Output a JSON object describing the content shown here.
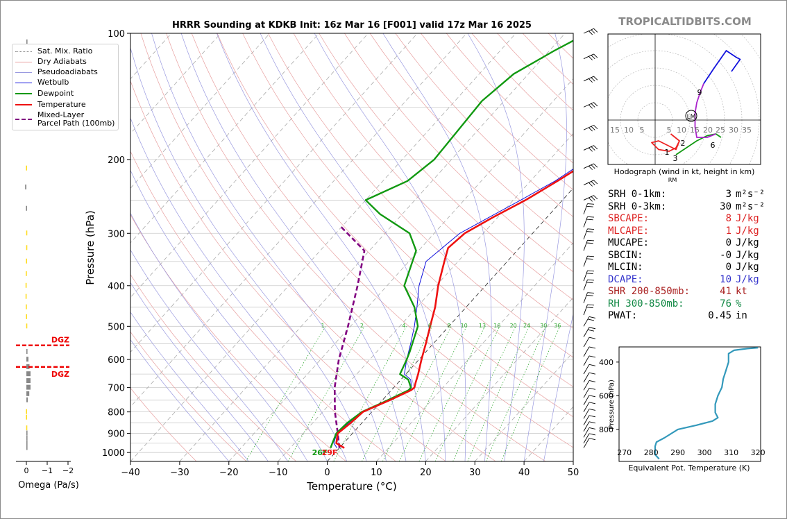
{
  "site_credit": "TROPICALTIDBITS.COM",
  "colors": {
    "temperature": "#ee1111",
    "dewpoint": "#119911",
    "wetbulb": "#1111dd",
    "parcel": "#800080",
    "dry_adiabat": "#e8a0a0",
    "moist_adiabat": "#9a9ae0",
    "mixing_ratio": "#33aa33",
    "isotherm": "#999999",
    "theta_e": "#3399bb",
    "omega": "#888888",
    "dgz": "#ee0000",
    "dcape": "#3333cc",
    "shr": "#aa2222",
    "rh": "#118844"
  },
  "chart_data": [
    {
      "type": "line",
      "title": "HRRR Sounding at KDKB Init: 16z Mar 16 [F001] valid 17z Mar 16 2025",
      "xlabel": "Temperature (°C)",
      "ylabel": "Pressure (hPa)",
      "xlim": [
        -40,
        50
      ],
      "ylim": [
        1050,
        100
      ],
      "yscale": "log",
      "x_ticks": [
        "−40",
        "−30",
        "−20",
        "−10",
        "0",
        "10",
        "20",
        "30",
        "40",
        "50"
      ],
      "y_ticks": [
        "100",
        "200",
        "300",
        "400",
        "500",
        "600",
        "700",
        "800",
        "900",
        "1000"
      ],
      "legend": [
        "Sat. Mix. Ratio",
        "Dry Adiabats",
        "Pseudoadiabats",
        "Wetbulb",
        "Dewpoint",
        "Temperature",
        "Mixed-Layer Parcel Path (100mb)"
      ],
      "legend_position": "upper-left",
      "mixing_ratio_labels": [
        "1",
        "2",
        "4",
        "6",
        "8",
        "10",
        "13",
        "16",
        "20",
        "24",
        "30",
        "36"
      ],
      "surface_labels": {
        "dewpoint": "26F",
        "temperature": "29F"
      },
      "series": [
        {
          "name": "Temperature",
          "points": [
            [
              1.0,
              975
            ],
            [
              -1.5,
              950
            ],
            [
              -3.0,
              900
            ],
            [
              -2.3,
              850
            ],
            [
              -1.8,
              800
            ],
            [
              1.5,
              750
            ],
            [
              4.0,
              710
            ],
            [
              4.2,
              700
            ],
            [
              3.5,
              680
            ],
            [
              2.5,
              650
            ],
            [
              0.5,
              600
            ],
            [
              -1.5,
              550
            ],
            [
              -3.8,
              500
            ],
            [
              -6.3,
              450
            ],
            [
              -9.6,
              400
            ],
            [
              -12.8,
              350
            ],
            [
              -14.5,
              325
            ],
            [
              -13.8,
              300
            ],
            [
              -11.0,
              275
            ],
            [
              -7.5,
              250
            ],
            [
              -4.5,
              225
            ],
            [
              -1.5,
              200
            ],
            [
              2.0,
              165
            ],
            [
              5.0,
              135
            ],
            [
              6.2,
              120
            ],
            [
              8.0,
              100
            ]
          ]
        },
        {
          "name": "Dewpoint",
          "points": [
            [
              -1.8,
              975
            ],
            [
              -2.3,
              950
            ],
            [
              -3.3,
              900
            ],
            [
              -3.0,
              850
            ],
            [
              -2.0,
              800
            ],
            [
              0.5,
              760
            ],
            [
              3.5,
              710
            ],
            [
              3.5,
              700
            ],
            [
              1.5,
              670
            ],
            [
              -1.2,
              650
            ],
            [
              -2.5,
              600
            ],
            [
              -3.3,
              575
            ],
            [
              -6.3,
              500
            ],
            [
              -10.5,
              450
            ],
            [
              -16.5,
              400
            ],
            [
              -20.5,
              330
            ],
            [
              -25.0,
              300
            ],
            [
              -34.5,
              270
            ],
            [
              -40.0,
              250
            ],
            [
              -35.0,
              225
            ],
            [
              -33.5,
              200
            ],
            [
              -34.0,
              170
            ],
            [
              -34.5,
              145
            ],
            [
              -33.0,
              125
            ],
            [
              -29.0,
              110
            ],
            [
              -25.5,
              100
            ]
          ]
        },
        {
          "name": "Wetbulb",
          "points": [
            [
              -0.5,
              975
            ],
            [
              -2.0,
              950
            ],
            [
              -3.2,
              900
            ],
            [
              -2.7,
              850
            ],
            [
              -1.9,
              800
            ],
            [
              1.0,
              750
            ],
            [
              3.8,
              710
            ],
            [
              3.6,
              700
            ],
            [
              2.0,
              670
            ],
            [
              -0.3,
              650
            ],
            [
              -2.5,
              600
            ],
            [
              -4.6,
              550
            ],
            [
              -7.0,
              500
            ],
            [
              -10.0,
              450
            ],
            [
              -13.5,
              400
            ],
            [
              -16.5,
              350
            ],
            [
              -14.8,
              300
            ],
            [
              -11.8,
              275
            ],
            [
              -8.5,
              250
            ],
            [
              -5.0,
              225
            ],
            [
              -2.3,
              200
            ],
            [
              0.5,
              170
            ],
            [
              4.0,
              135
            ],
            [
              5.5,
              120
            ],
            [
              7.5,
              100
            ]
          ]
        },
        {
          "name": "Mixed-Layer Parcel Path (100mb)",
          "points": [
            [
              0.0,
              975
            ],
            [
              -3.0,
              900
            ],
            [
              -7.5,
              800
            ],
            [
              -12.0,
              700
            ],
            [
              -16.3,
              600
            ],
            [
              -20.5,
              500
            ],
            [
              -26.0,
              400
            ],
            [
              -31.0,
              330
            ],
            [
              -40.0,
              290
            ]
          ]
        }
      ]
    },
    {
      "type": "line",
      "title": "Hodograph (wind in kt, height in km)",
      "storm_motion_labels": [
        "LM",
        "RM"
      ],
      "ring_labels": [
        "15",
        "10",
        "5",
        "5",
        "10",
        "15",
        "20",
        "25",
        "30",
        "35"
      ],
      "height_labels": [
        "1",
        "2",
        "3",
        "6",
        "9"
      ],
      "series": [
        {
          "name": "0-3 km",
          "color": "#ee2222",
          "points": [
            [
              4.5,
              -4.0
            ],
            [
              7.0,
              -6.0
            ],
            [
              6.0,
              -8.5
            ],
            [
              1.0,
              -6.0
            ],
            [
              -1.0,
              -6.5
            ],
            [
              1.0,
              -8.5
            ],
            [
              4.0,
              -9.0
            ],
            [
              6.0,
              -8.0
            ],
            [
              7.0,
              -6.0
            ]
          ]
        },
        {
          "name": "3-6 km",
          "color": "#119911",
          "points": [
            [
              6.0,
              -10.0
            ],
            [
              9.0,
              -8.0
            ],
            [
              12.0,
              -6.0
            ],
            [
              15.0,
              -4.5
            ],
            [
              17.5,
              -4.0
            ],
            [
              19.0,
              -5.0
            ]
          ]
        },
        {
          "name": "6-9 km",
          "color": "#aa22cc",
          "points": [
            [
              17.5,
              -4.0
            ],
            [
              15.0,
              -5.0
            ],
            [
              12.0,
              -5.0
            ],
            [
              11.5,
              -2.0
            ],
            [
              11.5,
              2.0
            ],
            [
              12.0,
              5.0
            ],
            [
              13.0,
              8.0
            ],
            [
              14.0,
              10.5
            ]
          ]
        },
        {
          "name": "9+ km",
          "color": "#1111dd",
          "points": [
            [
              14.0,
              10.5
            ],
            [
              17.0,
              15.0
            ],
            [
              20.5,
              20.0
            ],
            [
              23.5,
              18.0
            ],
            [
              24.5,
              17.5
            ],
            [
              22.0,
              14.0
            ]
          ]
        }
      ]
    },
    {
      "type": "line",
      "xlabel": "Equivalent Pot. Temperature (K)",
      "ylabel": "Pressure (hPa)",
      "xlim": [
        268,
        321
      ],
      "ylim": [
        990,
        310
      ],
      "x_ticks": [
        "270",
        "280",
        "290",
        "300",
        "310",
        "320"
      ],
      "y_ticks": [
        "400",
        "600",
        "800"
      ],
      "series": [
        {
          "name": "theta-e",
          "points": [
            [
              283,
              975
            ],
            [
              281.5,
              950
            ],
            [
              281.5,
              900
            ],
            [
              282,
              875
            ],
            [
              285,
              850
            ],
            [
              290,
              800
            ],
            [
              297,
              775
            ],
            [
              303,
              750
            ],
            [
              305,
              730
            ],
            [
              304,
              700
            ],
            [
              304,
              650
            ],
            [
              305,
              600
            ],
            [
              306.5,
              550
            ],
            [
              307,
              500
            ],
            [
              308,
              450
            ],
            [
              309,
              400
            ],
            [
              309,
              350
            ],
            [
              311,
              330
            ],
            [
              316,
              320
            ],
            [
              320,
              315
            ]
          ]
        }
      ]
    },
    {
      "type": "bar",
      "xlabel": "Omega (Pa/s)",
      "x_ticks": [
        "0",
        "−1",
        "−2"
      ],
      "xlim": [
        0.3,
        -2.2
      ],
      "dgz_labels": [
        "DGZ",
        "DGZ"
      ],
      "dgz_pressures": [
        555,
        625
      ],
      "bars": [
        {
          "p": 105,
          "v": -0.05,
          "c": "grey"
        },
        {
          "p": 135,
          "v": 0.02,
          "c": "yellow"
        },
        {
          "p": 165,
          "v": 0.01,
          "c": "yellow"
        },
        {
          "p": 210,
          "v": 0.02,
          "c": "yellow"
        },
        {
          "p": 233,
          "v": 0.06,
          "c": "grey"
        },
        {
          "p": 262,
          "v": 0.02,
          "c": "grey"
        },
        {
          "p": 300,
          "v": 0.01,
          "c": "yellow"
        },
        {
          "p": 325,
          "v": 0.01,
          "c": "yellow"
        },
        {
          "p": 350,
          "v": 0.02,
          "c": "yellow"
        },
        {
          "p": 375,
          "v": 0.03,
          "c": "yellow"
        },
        {
          "p": 400,
          "v": 0.04,
          "c": "yellow"
        },
        {
          "p": 425,
          "v": 0.04,
          "c": "yellow"
        },
        {
          "p": 450,
          "v": 0.03,
          "c": "yellow"
        },
        {
          "p": 475,
          "v": 0.02,
          "c": "yellow"
        },
        {
          "p": 500,
          "v": 0.01,
          "c": "yellow"
        },
        {
          "p": 575,
          "v": -0.05,
          "c": "grey"
        },
        {
          "p": 600,
          "v": -0.1,
          "c": "grey"
        },
        {
          "p": 625,
          "v": -0.15,
          "c": "grey"
        },
        {
          "p": 650,
          "v": -0.2,
          "c": "grey"
        },
        {
          "p": 675,
          "v": -0.2,
          "c": "grey"
        },
        {
          "p": 700,
          "v": -0.2,
          "c": "grey"
        },
        {
          "p": 725,
          "v": -0.14,
          "c": "grey"
        },
        {
          "p": 750,
          "v": -0.07,
          "c": "grey"
        },
        {
          "p": 800,
          "v": 0.02,
          "c": "yellow"
        },
        {
          "p": 825,
          "v": 0.02,
          "c": "yellow"
        },
        {
          "p": 875,
          "v": 0.01,
          "c": "yellow"
        },
        {
          "p": 900,
          "v": -0.01,
          "c": "grey"
        },
        {
          "p": 925,
          "v": -0.02,
          "c": "grey"
        },
        {
          "p": 950,
          "v": -0.02,
          "c": "grey"
        },
        {
          "p": 975,
          "v": -0.02,
          "c": "grey"
        }
      ]
    }
  ],
  "parameters": [
    {
      "label": "SRH 0-1km:",
      "value": "3",
      "unit": "m²s⁻²",
      "color": "#000000"
    },
    {
      "label": "SRH 0-3km:",
      "value": "30",
      "unit": "m²s⁻²",
      "color": "#000000"
    },
    {
      "label": "SBCAPE:",
      "value": "8",
      "unit": "J/kg",
      "color": "#dd2222"
    },
    {
      "label": "MLCAPE:",
      "value": "1",
      "unit": "J/kg",
      "color": "#dd2222"
    },
    {
      "label": "MUCAPE:",
      "value": "0",
      "unit": "J/kg",
      "color": "#000000"
    },
    {
      "label": "SBCIN:",
      "value": "-0",
      "unit": "J/kg",
      "color": "#000000"
    },
    {
      "label": "MLCIN:",
      "value": "0",
      "unit": "J/kg",
      "color": "#000000"
    },
    {
      "label": "DCAPE:",
      "value": "10",
      "unit": "J/kg",
      "color": "#3333cc"
    },
    {
      "label": "SHR 200-850mb:",
      "value": "41",
      "unit": "kt",
      "color": "#aa2222"
    },
    {
      "label": "RH 300-850mb:",
      "value": "76",
      "unit": "%",
      "color": "#118844"
    },
    {
      "label": "PWAT:",
      "value": "0.45",
      "unit": "in",
      "color": "#000000"
    }
  ]
}
